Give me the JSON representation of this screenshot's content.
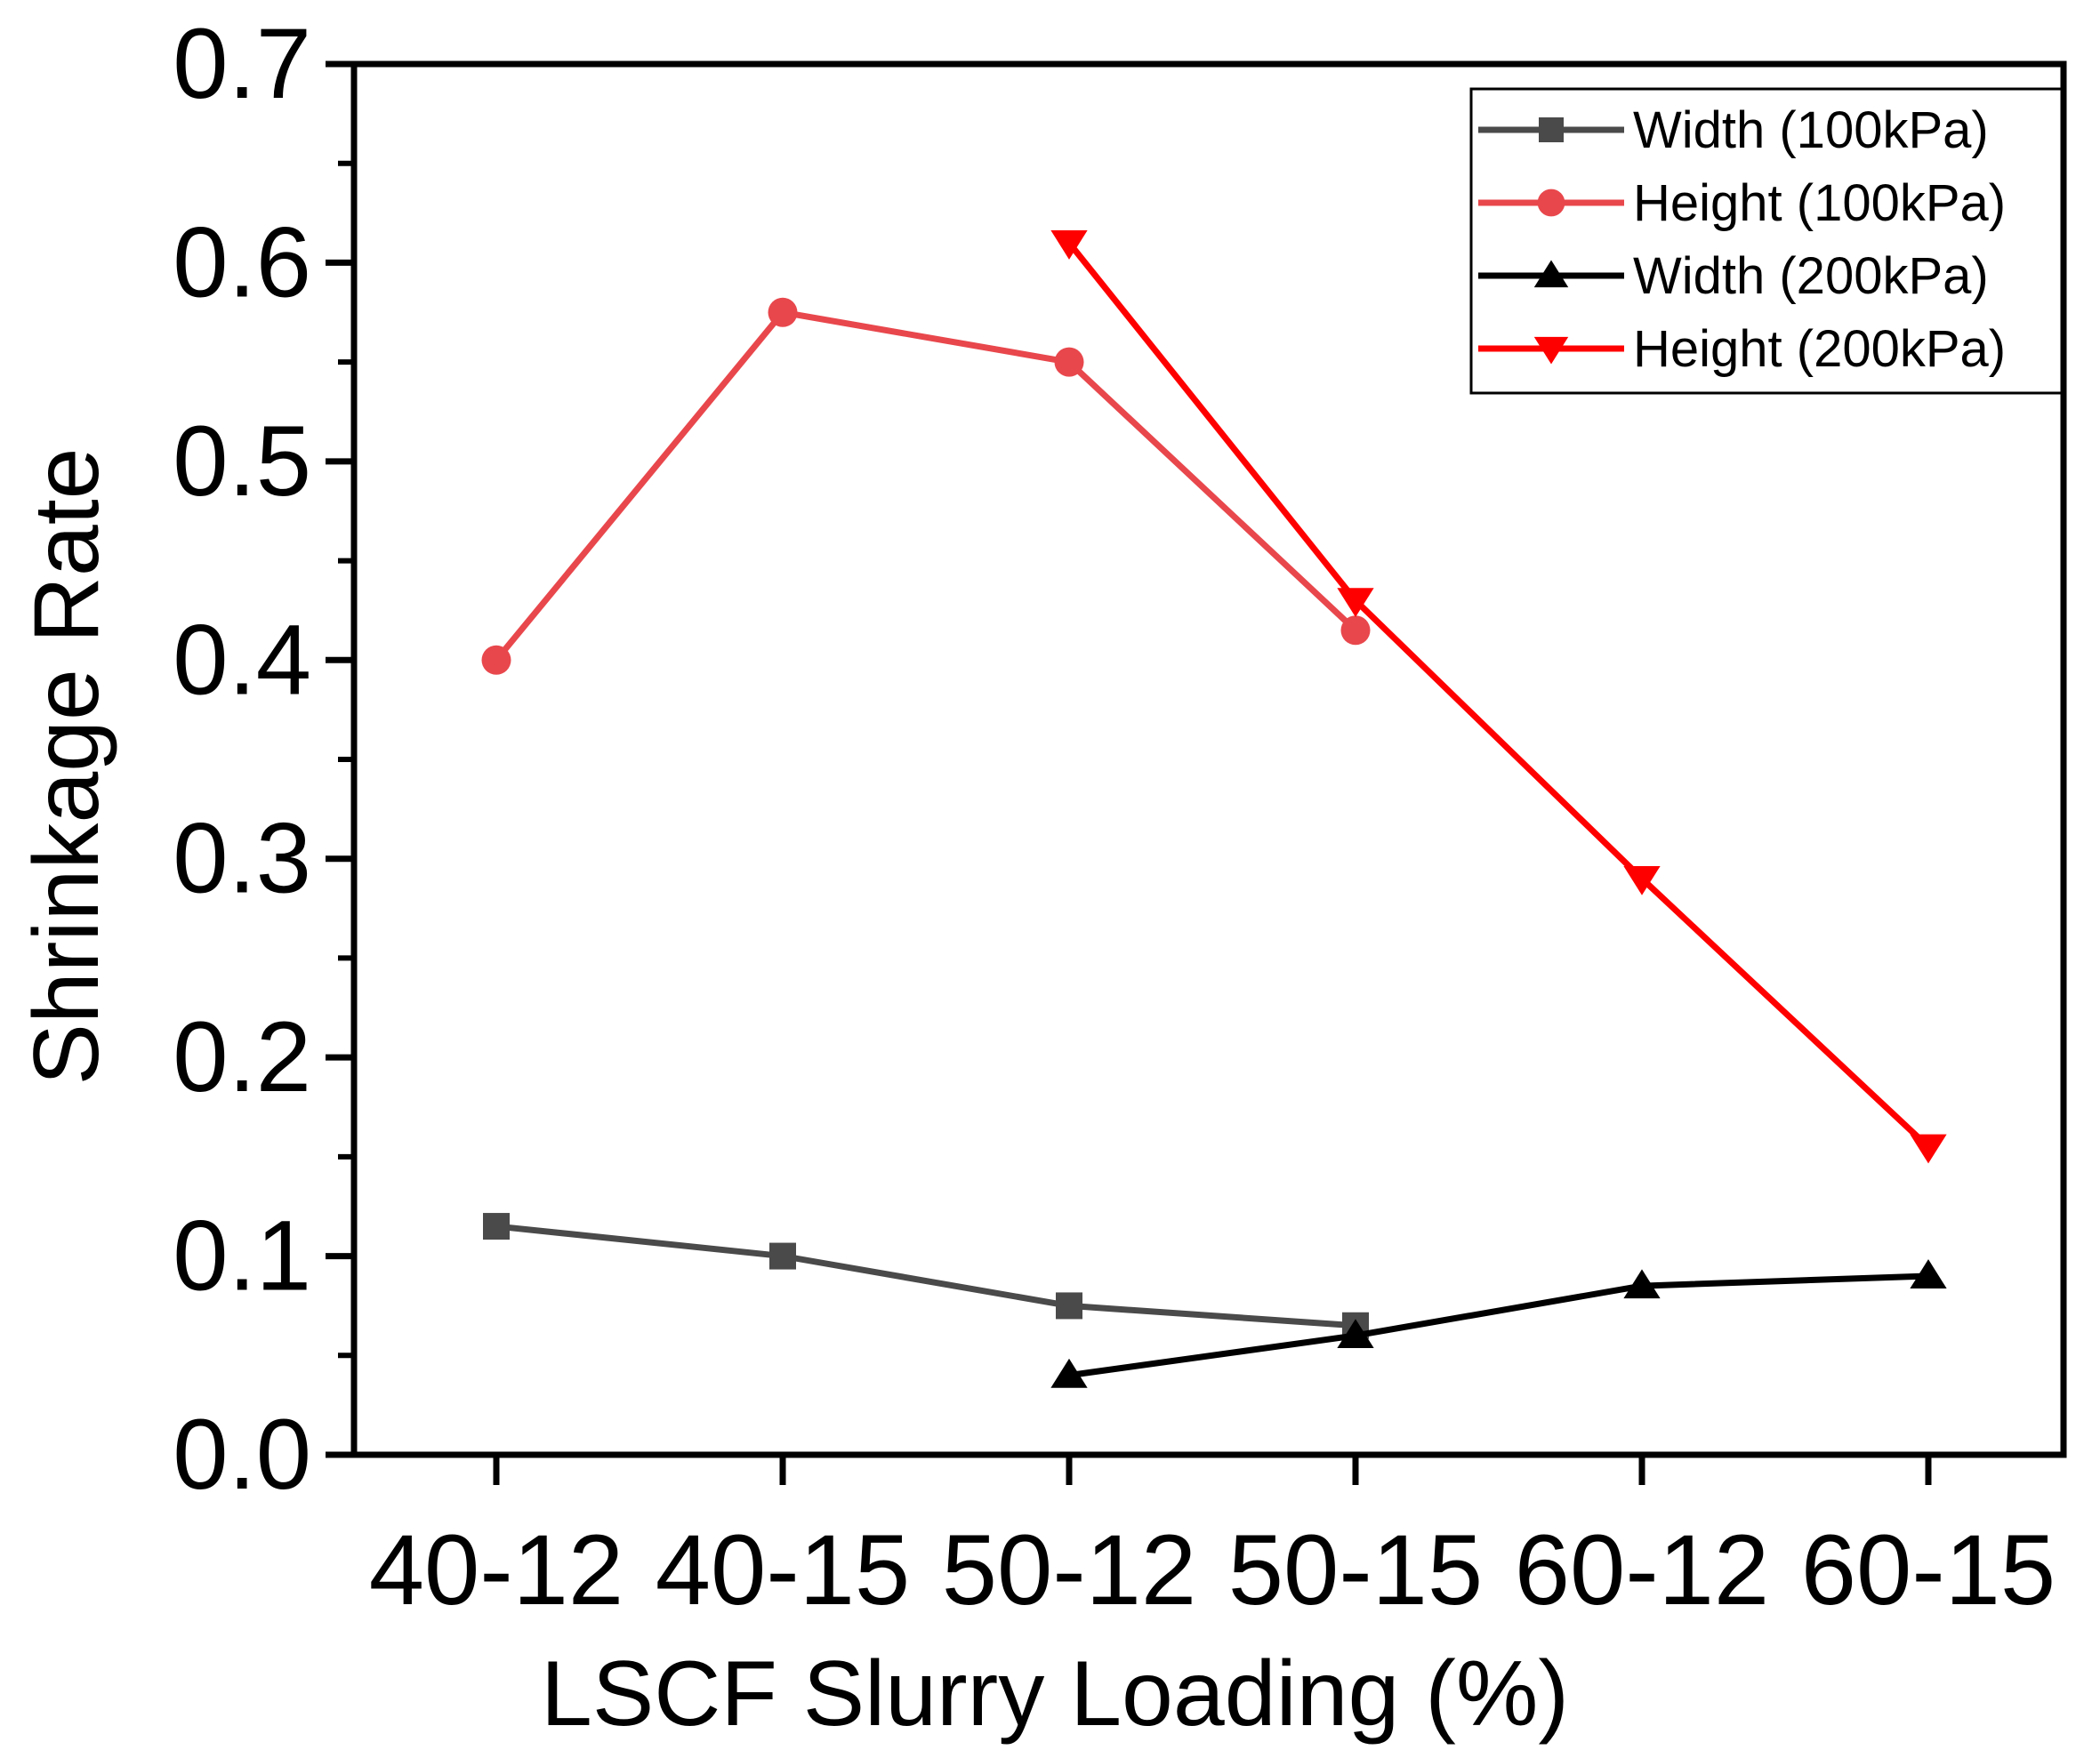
{
  "chart_data": {
    "type": "line",
    "title": "",
    "xlabel": "LSCF Slurry Loading (%)",
    "ylabel": "Shrinkage Rate",
    "categories": [
      "40-12",
      "40-15",
      "50-12",
      "50-15",
      "60-12",
      "60-15"
    ],
    "ylim": [
      0.0,
      0.7
    ],
    "yticks": [
      "0.0",
      "0.1",
      "0.2",
      "0.3",
      "0.4",
      "0.5",
      "0.6",
      "0.7"
    ],
    "grid": false,
    "legend_position": "top-right",
    "series": [
      {
        "name": "Width (100kPa)",
        "color": "#4a4a4a",
        "marker": "square",
        "values": [
          0.115,
          0.1,
          0.075,
          0.065,
          null,
          null
        ]
      },
      {
        "name": "Height (100kPa)",
        "color": "#e8474c",
        "marker": "circle",
        "values": [
          0.4,
          0.575,
          0.55,
          0.415,
          null,
          null
        ]
      },
      {
        "name": "Width (200kPa)",
        "color": "#000000",
        "marker": "triangle-up",
        "values": [
          null,
          null,
          0.04,
          0.06,
          0.085,
          0.09
        ]
      },
      {
        "name": "Height (200kPa)",
        "color": "#ff0000",
        "marker": "triangle-down",
        "values": [
          null,
          null,
          0.61,
          0.43,
          0.29,
          0.155
        ]
      }
    ]
  }
}
